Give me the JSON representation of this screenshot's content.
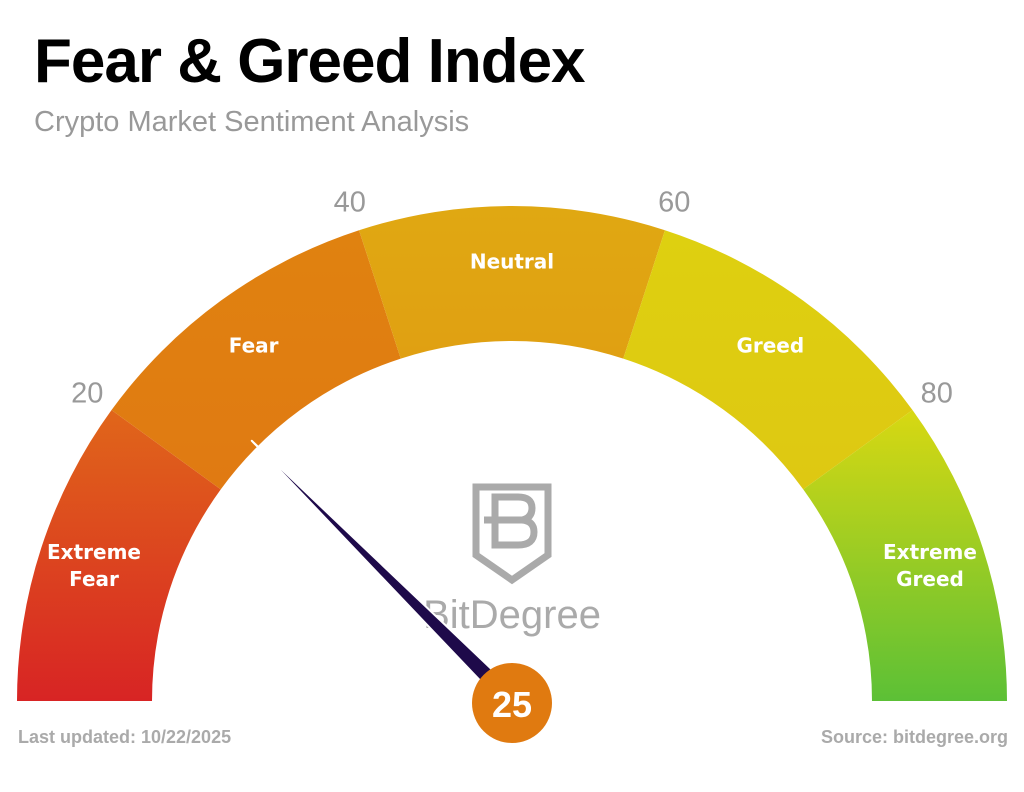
{
  "header": {
    "title": "Fear & Greed Index",
    "subtitle": "Crypto Market Sentiment Analysis"
  },
  "footer": {
    "last_updated": "Last updated: 10/22/2025",
    "source": "Source: bitdegree.org"
  },
  "logo": {
    "text": "BitDegree",
    "icon": "bitdegree-shield-logo"
  },
  "chart_data": {
    "type": "gauge",
    "range": [
      0,
      100
    ],
    "value": 25,
    "value_label": "25",
    "segments": [
      {
        "label": "Extreme Fear",
        "from": 0,
        "to": 20,
        "colors": [
          "#d82424",
          "#e0661a"
        ]
      },
      {
        "label": "Fear",
        "from": 20,
        "to": 40,
        "colors": [
          "#e07a12",
          "#e08210"
        ]
      },
      {
        "label": "Neutral",
        "from": 40,
        "to": 60,
        "colors": [
          "#e0a012",
          "#e0a812"
        ]
      },
      {
        "label": "Greed",
        "from": 60,
        "to": 80,
        "colors": [
          "#dec812",
          "#ded010"
        ]
      },
      {
        "label": "Extreme Greed",
        "from": 80,
        "to": 100,
        "colors": [
          "#d8d812",
          "#5cc036"
        ]
      }
    ],
    "tick_labels": [
      "20",
      "40",
      "60",
      "80"
    ],
    "tick_values": [
      20,
      40,
      60,
      80
    ],
    "needle_color": "#1e0a4a",
    "value_badge_color": "#e07a10"
  }
}
